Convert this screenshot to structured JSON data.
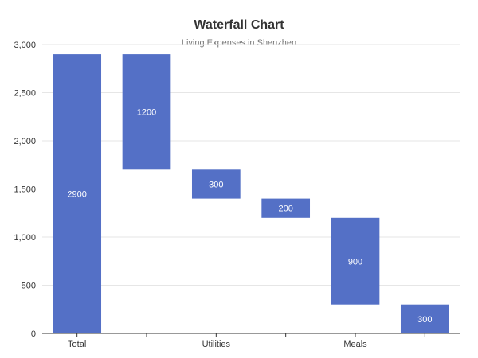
{
  "chart_data": {
    "type": "bar",
    "variant": "waterfall",
    "title": "Waterfall Chart",
    "subtitle": "Living Expenses in Shenzhen",
    "xlabel": "",
    "ylabel": "",
    "ylim": [
      0,
      3000
    ],
    "yticks": [
      0,
      500,
      1000,
      1500,
      2000,
      2500,
      3000
    ],
    "ytick_labels": [
      "0",
      "500",
      "1,000",
      "1,500",
      "2,000",
      "2,500",
      "3,000"
    ],
    "grid": true,
    "legend": "none",
    "bar_color": "#5470c6",
    "categories": [
      "Total",
      "",
      "Utilities",
      "",
      "Meals",
      ""
    ],
    "bars": [
      {
        "label": "2900",
        "value": 2900,
        "base": 0,
        "top": 2900
      },
      {
        "label": "1200",
        "value": 1200,
        "base": 1700,
        "top": 2900
      },
      {
        "label": "300",
        "value": 300,
        "base": 1400,
        "top": 1700
      },
      {
        "label": "200",
        "value": 200,
        "base": 1200,
        "top": 1400
      },
      {
        "label": "900",
        "value": 900,
        "base": 300,
        "top": 1200
      },
      {
        "label": "300",
        "value": 300,
        "base": 0,
        "top": 300
      }
    ]
  }
}
